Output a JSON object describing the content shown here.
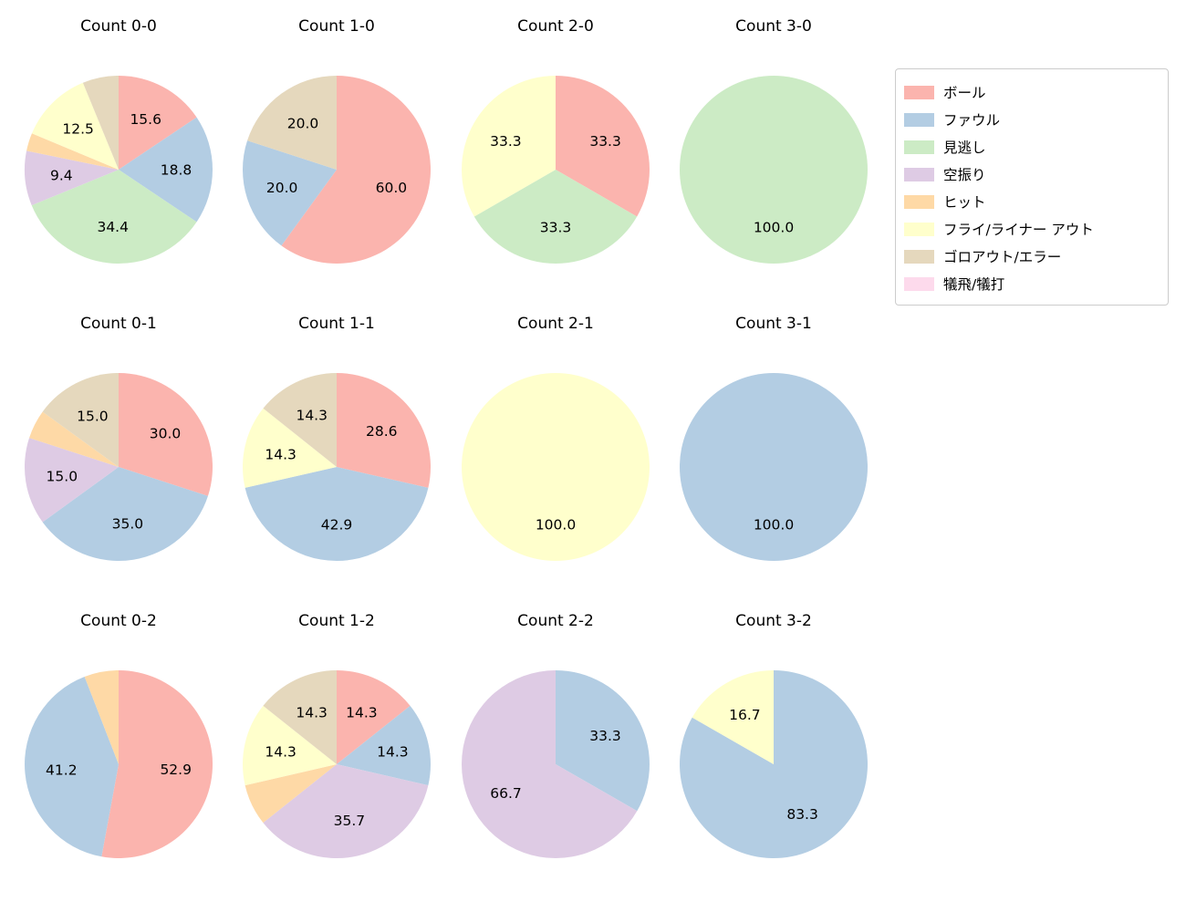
{
  "figure": {
    "background": "#ffffff",
    "text_color": "#000000"
  },
  "legend": {
    "position": "top-right",
    "items": [
      {
        "label": "ボール",
        "color": "#fbb4ae"
      },
      {
        "label": "ファウル",
        "color": "#b3cde3"
      },
      {
        "label": "見逃し",
        "color": "#ccebc5"
      },
      {
        "label": "空振り",
        "color": "#decbe4"
      },
      {
        "label": "ヒット",
        "color": "#fed9a6"
      },
      {
        "label": "フライ/ライナー アウト",
        "color": "#ffffcc"
      },
      {
        "label": "ゴロアウト/エラー",
        "color": "#e5d8bd"
      },
      {
        "label": "犠飛/犠打",
        "color": "#fddaec"
      }
    ]
  },
  "chart_data": [
    {
      "type": "pie",
      "title": "Count 0-0",
      "start_angle": "top",
      "direction": "clockwise",
      "slices": [
        {
          "category": "ボール",
          "value": 15.6,
          "label": "15.6"
        },
        {
          "category": "ファウル",
          "value": 18.8,
          "label": "18.8"
        },
        {
          "category": "見逃し",
          "value": 34.4,
          "label": "34.4"
        },
        {
          "category": "空振り",
          "value": 9.4,
          "label": "9.4"
        },
        {
          "category": "ヒット",
          "value": 3.1,
          "label": ""
        },
        {
          "category": "フライ/ライナー アウト",
          "value": 12.5,
          "label": "12.5"
        },
        {
          "category": "ゴロアウト/エラー",
          "value": 6.2,
          "label": ""
        }
      ]
    },
    {
      "type": "pie",
      "title": "Count 1-0",
      "start_angle": "top",
      "direction": "clockwise",
      "slices": [
        {
          "category": "ボール",
          "value": 60.0,
          "label": "60.0"
        },
        {
          "category": "ファウル",
          "value": 20.0,
          "label": "20.0"
        },
        {
          "category": "ゴロアウト/エラー",
          "value": 20.0,
          "label": "20.0"
        }
      ]
    },
    {
      "type": "pie",
      "title": "Count 2-0",
      "start_angle": "top",
      "direction": "clockwise",
      "slices": [
        {
          "category": "ボール",
          "value": 33.3,
          "label": "33.3"
        },
        {
          "category": "見逃し",
          "value": 33.3,
          "label": "33.3"
        },
        {
          "category": "フライ/ライナー アウト",
          "value": 33.3,
          "label": "33.3"
        }
      ]
    },
    {
      "type": "pie",
      "title": "Count 3-0",
      "start_angle": "top",
      "direction": "clockwise",
      "slices": [
        {
          "category": "見逃し",
          "value": 100.0,
          "label": "100.0"
        }
      ]
    },
    {
      "type": "pie",
      "title": "Count 0-1",
      "start_angle": "top",
      "direction": "clockwise",
      "slices": [
        {
          "category": "ボール",
          "value": 30.0,
          "label": "30.0"
        },
        {
          "category": "ファウル",
          "value": 35.0,
          "label": "35.0"
        },
        {
          "category": "空振り",
          "value": 15.0,
          "label": "15.0"
        },
        {
          "category": "ヒット",
          "value": 5.0,
          "label": ""
        },
        {
          "category": "ゴロアウト/エラー",
          "value": 15.0,
          "label": "15.0"
        }
      ]
    },
    {
      "type": "pie",
      "title": "Count 1-1",
      "start_angle": "top",
      "direction": "clockwise",
      "slices": [
        {
          "category": "ボール",
          "value": 28.6,
          "label": "28.6"
        },
        {
          "category": "ファウル",
          "value": 42.9,
          "label": "42.9"
        },
        {
          "category": "フライ/ライナー アウト",
          "value": 14.3,
          "label": "14.3"
        },
        {
          "category": "ゴロアウト/エラー",
          "value": 14.3,
          "label": "14.3"
        }
      ]
    },
    {
      "type": "pie",
      "title": "Count 2-1",
      "start_angle": "top",
      "direction": "clockwise",
      "slices": [
        {
          "category": "フライ/ライナー アウト",
          "value": 100.0,
          "label": "100.0"
        }
      ]
    },
    {
      "type": "pie",
      "title": "Count 3-1",
      "start_angle": "top",
      "direction": "clockwise",
      "slices": [
        {
          "category": "ファウル",
          "value": 100.0,
          "label": "100.0"
        }
      ]
    },
    {
      "type": "pie",
      "title": "Count 0-2",
      "start_angle": "top",
      "direction": "clockwise",
      "slices": [
        {
          "category": "ボール",
          "value": 52.9,
          "label": "52.9"
        },
        {
          "category": "ファウル",
          "value": 41.2,
          "label": "41.2"
        },
        {
          "category": "ヒット",
          "value": 5.9,
          "label": ""
        }
      ]
    },
    {
      "type": "pie",
      "title": "Count 1-2",
      "start_angle": "top",
      "direction": "clockwise",
      "slices": [
        {
          "category": "ボール",
          "value": 14.3,
          "label": "14.3"
        },
        {
          "category": "ファウル",
          "value": 14.3,
          "label": "14.3"
        },
        {
          "category": "空振り",
          "value": 35.7,
          "label": "35.7"
        },
        {
          "category": "ヒット",
          "value": 7.1,
          "label": ""
        },
        {
          "category": "フライ/ライナー アウト",
          "value": 14.3,
          "label": "14.3"
        },
        {
          "category": "ゴロアウト/エラー",
          "value": 14.3,
          "label": "14.3"
        }
      ]
    },
    {
      "type": "pie",
      "title": "Count 2-2",
      "start_angle": "top",
      "direction": "clockwise",
      "slices": [
        {
          "category": "ファウル",
          "value": 33.3,
          "label": "33.3"
        },
        {
          "category": "空振り",
          "value": 66.7,
          "label": "66.7"
        }
      ]
    },
    {
      "type": "pie",
      "title": "Count 3-2",
      "start_angle": "top",
      "direction": "clockwise",
      "slices": [
        {
          "category": "ファウル",
          "value": 83.3,
          "label": "83.3"
        },
        {
          "category": "フライ/ライナー アウト",
          "value": 16.7,
          "label": "16.7"
        }
      ]
    }
  ]
}
